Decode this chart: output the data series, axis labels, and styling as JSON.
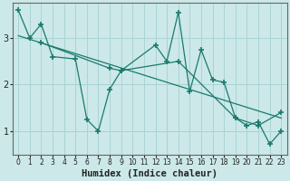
{
  "xlabel": "Humidex (Indice chaleur)",
  "background_color": "#cce8e8",
  "grid_color": "#aad4d4",
  "line_color": "#1a7a6e",
  "xlim": [
    -0.5,
    23.5
  ],
  "ylim": [
    0.5,
    3.75
  ],
  "yticks": [
    1,
    2,
    3
  ],
  "xticks": [
    0,
    1,
    2,
    3,
    4,
    5,
    6,
    7,
    8,
    9,
    10,
    11,
    12,
    13,
    14,
    15,
    16,
    17,
    18,
    19,
    20,
    21,
    22,
    23
  ],
  "line1_x": [
    0,
    1,
    2,
    3,
    5,
    6,
    7,
    8,
    9,
    12,
    13,
    14,
    15,
    16,
    17,
    18,
    19,
    20,
    21,
    22,
    23
  ],
  "line1_y": [
    3.6,
    3.0,
    3.3,
    2.6,
    2.55,
    1.25,
    1.0,
    1.9,
    2.3,
    2.85,
    2.5,
    3.55,
    1.85,
    2.75,
    2.1,
    2.05,
    1.28,
    1.12,
    1.2,
    0.72,
    1.0
  ],
  "line2_x": [
    0,
    23
  ],
  "line2_y": [
    3.05,
    1.28
  ],
  "line3_x": [
    2,
    8,
    9,
    14,
    19,
    21,
    23
  ],
  "line3_y": [
    2.9,
    2.35,
    2.3,
    2.5,
    1.28,
    1.12,
    1.4
  ]
}
